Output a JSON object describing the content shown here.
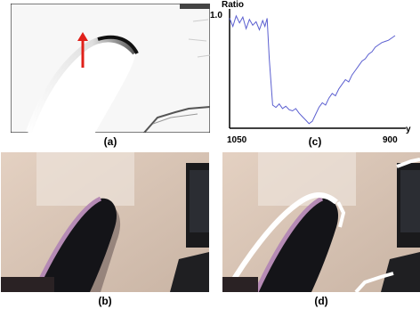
{
  "figure": {
    "panels": [
      {
        "id": "a",
        "caption": "(a)"
      },
      {
        "id": "b",
        "caption": "(b)"
      },
      {
        "id": "c",
        "caption": "(c)"
      },
      {
        "id": "d",
        "caption": "(d)"
      }
    ]
  },
  "colors": {
    "arrow": "#e0201a",
    "plot_line": "#5b5fd0",
    "wall": "#d9c7ba",
    "chair": "#141418",
    "chair_edge": "#b58ab4",
    "shadow_outline": "#ffffff"
  },
  "chart_data": {
    "type": "line",
    "title": "",
    "ylabel": "Ratio",
    "xlabel": "y",
    "x_tick_labels": [
      "1050",
      "900"
    ],
    "y_tick_labels": [
      "1.0"
    ],
    "x": [
      1050,
      1047,
      1044,
      1041,
      1038,
      1035,
      1032,
      1029,
      1026,
      1023,
      1020,
      1018,
      1016,
      1014,
      1011,
      1008,
      1005,
      1002,
      999,
      996,
      993,
      990,
      987,
      984,
      981,
      978,
      975,
      972,
      969,
      966,
      963,
      960,
      957,
      954,
      951,
      948,
      945,
      942,
      939,
      936,
      933,
      930,
      927,
      924,
      921,
      918,
      915,
      912,
      909,
      906,
      903,
      900
    ],
    "values": [
      0.95,
      0.88,
      0.97,
      0.91,
      0.96,
      0.86,
      0.94,
      0.89,
      0.92,
      0.85,
      0.93,
      0.88,
      0.95,
      0.6,
      0.2,
      0.18,
      0.21,
      0.17,
      0.19,
      0.16,
      0.15,
      0.17,
      0.13,
      0.1,
      0.07,
      0.04,
      0.06,
      0.12,
      0.18,
      0.22,
      0.2,
      0.26,
      0.3,
      0.28,
      0.34,
      0.38,
      0.42,
      0.4,
      0.46,
      0.5,
      0.54,
      0.58,
      0.6,
      0.64,
      0.66,
      0.7,
      0.72,
      0.74,
      0.75,
      0.76,
      0.78,
      0.8
    ],
    "xlim": [
      1050,
      900
    ],
    "ylim": [
      0,
      1.0
    ],
    "grid": false,
    "legend": "none"
  }
}
